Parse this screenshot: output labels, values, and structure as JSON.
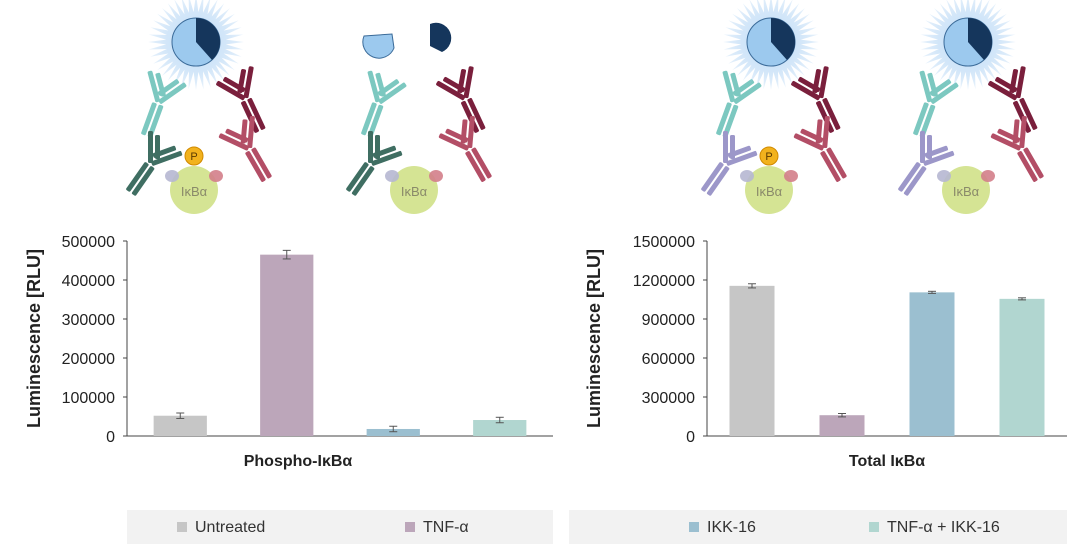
{
  "colors": {
    "untreated": "#c6c6c6",
    "tnf": "#bca6ba",
    "ikk16": "#9bbfd0",
    "tnf_ikk16": "#b1d6d0",
    "error": "#555555",
    "glow": "#8fc0ee",
    "donor": "#9cc9ee",
    "donor_dark": "#15365c",
    "teal_ab": "#7cc8c0",
    "dark_green_ab": "#3f6e62",
    "maroon_ab": "#7a1f3c",
    "pink_ab": "#b34e66",
    "lavender_ab": "#9c97c9",
    "ikba_fill": "#d5e494",
    "phospho": "#f2b21d"
  },
  "diagrams": [
    {
      "id": "phospho-intact",
      "lower_left": "dark_green",
      "phospho": true,
      "split": false,
      "ikba_label": "IκBα",
      "p_label": "P"
    },
    {
      "id": "phospho-split",
      "lower_left": "dark_green",
      "phospho": false,
      "split": true,
      "ikba_label": "IκBα"
    },
    {
      "id": "total-phospho",
      "lower_left": "lavender",
      "phospho": true,
      "split": false,
      "ikba_label": "IκBα",
      "p_label": "P"
    },
    {
      "id": "total-plain",
      "lower_left": "lavender",
      "phospho": false,
      "split": false,
      "ikba_label": "IκBα"
    }
  ],
  "chart_data": [
    {
      "type": "bar",
      "title": "",
      "xlabel": "Phospho-IκBα",
      "ylabel": "Luminescence [RLU]",
      "categories": [
        "Untreated",
        "TNF-α",
        "IKK-16",
        "TNF-α + IKK-16"
      ],
      "values": [
        52000,
        465000,
        18000,
        41000
      ],
      "errors": [
        7000,
        11000,
        7000,
        7000
      ],
      "ylim": [
        0,
        500000
      ],
      "yticks": [
        "0",
        "100000",
        "200000",
        "300000",
        "400000",
        "500000"
      ],
      "ytick_values": [
        0,
        100000,
        200000,
        300000,
        400000,
        500000
      ],
      "grid": false
    },
    {
      "type": "bar",
      "title": "",
      "xlabel": "Total IκBα",
      "ylabel": "Luminescence [RLU]",
      "categories": [
        "Untreated",
        "TNF-α",
        "IKK-16",
        "TNF-α + IKK-16"
      ],
      "values": [
        1155000,
        160000,
        1105000,
        1055000
      ],
      "errors": [
        16000,
        13000,
        8000,
        8000
      ],
      "ylim": [
        0,
        1500000
      ],
      "yticks": [
        "0",
        "300000",
        "600000",
        "900000",
        "1200000",
        "1500000"
      ],
      "ytick_values": [
        0,
        300000,
        600000,
        900000,
        1200000,
        1500000
      ],
      "grid": false
    }
  ],
  "legend": {
    "position": "bottom",
    "items": [
      {
        "label": "Untreated",
        "color_key": "untreated"
      },
      {
        "label": "TNF-α",
        "color_key": "tnf"
      },
      {
        "label": "IKK-16",
        "color_key": "ikk16"
      },
      {
        "label": "TNF-α + IKK-16",
        "color_key": "tnf_ikk16"
      }
    ]
  }
}
